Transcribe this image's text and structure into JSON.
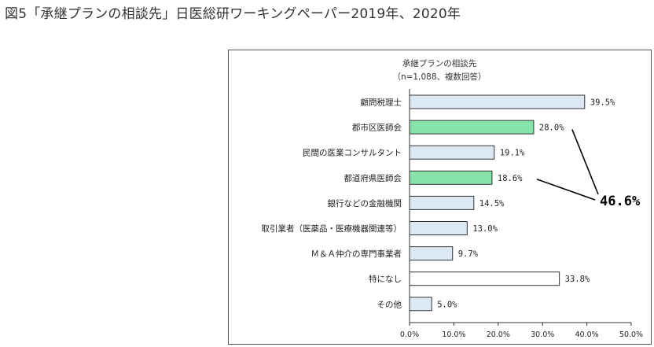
{
  "page": {
    "heading": "図5「承継プランの相談先」日医総研ワーキングペーパー2019年、2020年"
  },
  "chart_data": {
    "type": "bar",
    "orientation": "horizontal",
    "title": "承継プランの相談先",
    "subtitle": "（n=1,088、複数回答）",
    "categories": [
      "顧問税理士",
      "郡市区医師会",
      "民間の医業コンサルタント",
      "都道府県医師会",
      "銀行などの金融機関",
      "取引業者（医薬品・医療機器関連等）",
      "Ｍ＆Ａ仲介の専門事業者",
      "特になし",
      "その他"
    ],
    "values": [
      39.5,
      28.0,
      19.1,
      18.6,
      14.5,
      13.0,
      9.7,
      33.8,
      5.0
    ],
    "value_labels": [
      "39.5%",
      "28.0%",
      "19.1%",
      "18.6%",
      "14.5%",
      "13.0%",
      "9.7%",
      "33.8%",
      "5.0%"
    ],
    "xlim": [
      0,
      50
    ],
    "xticks": [
      0,
      10,
      20,
      30,
      40,
      50
    ],
    "xtick_labels": [
      "0.0%",
      "10.0%",
      "20.0%",
      "30.0%",
      "40.0%",
      "50.0%"
    ],
    "grid": false,
    "highlighted_categories": [
      "郡市区医師会",
      "都道府県医師会"
    ],
    "annotation": {
      "text": "46.6%",
      "refers_to": [
        "郡市区医師会",
        "都道府県医師会"
      ]
    },
    "colors": {
      "default_fill": "#dde8f5",
      "highlight_fill": "#86e3ac",
      "none_fill": "#ffffff",
      "bar_stroke": "#333333"
    },
    "bar_styles": [
      "default",
      "highlight",
      "default",
      "highlight",
      "default",
      "default",
      "default",
      "none",
      "default"
    ]
  }
}
